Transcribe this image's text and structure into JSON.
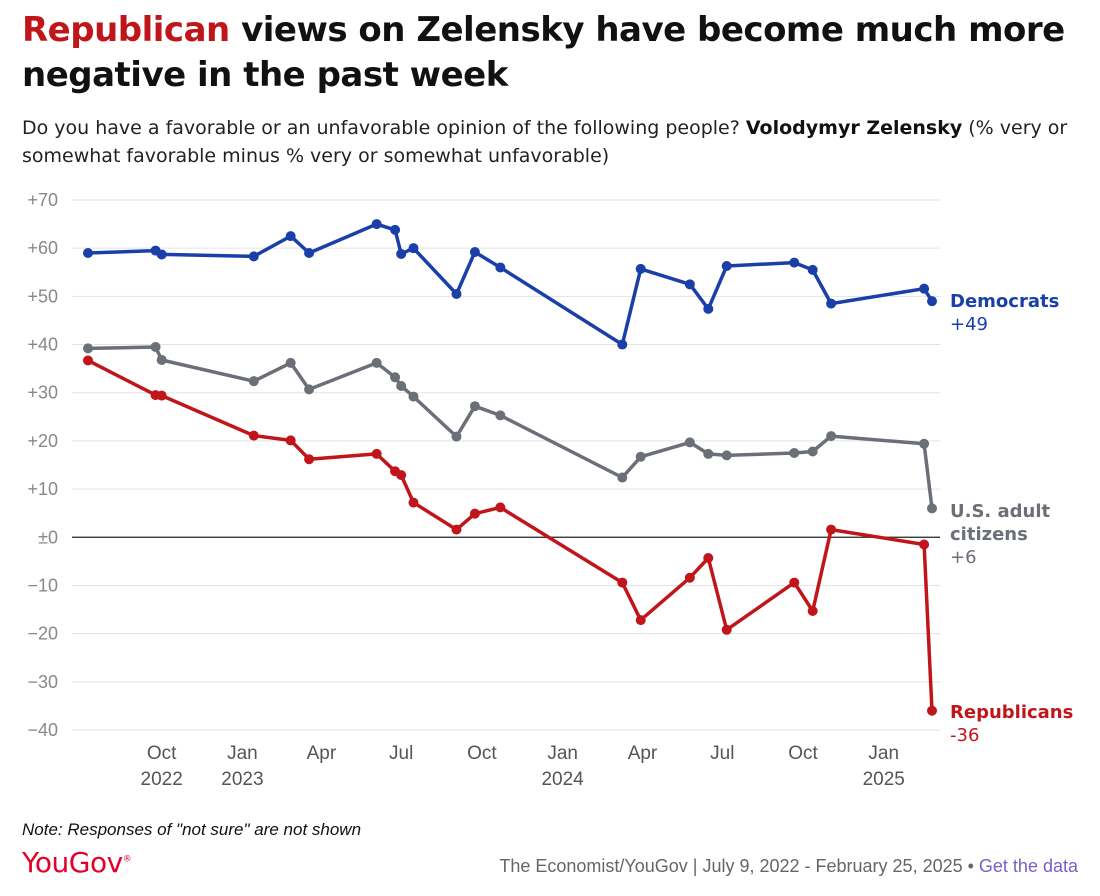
{
  "header": {
    "title_highlight": "Republican",
    "title_rest": " views on Zelensky have become much more negative in the past week",
    "subtitle_pre": "Do you have a favorable or an unfavorable opinion of the following people? ",
    "subtitle_bold": "Volodymyr Zelensky",
    "subtitle_post": " (% very or somewhat favorable minus % very or somewhat unfavorable)"
  },
  "footer": {
    "note": "Note: Responses of \"not sure\" are not shown",
    "logo": "YouGov",
    "source": "The Economist/YouGov | July 9, 2022 - February 25, 2025 • ",
    "link": "Get the data"
  },
  "colors": {
    "democrats": "#1a3fa8",
    "citizens": "#6b6f78",
    "republicans": "#c0161b",
    "zero_line": "#222222",
    "grid": "#e3e3e3"
  },
  "chart_data": {
    "type": "line",
    "ylim": [
      -40,
      70
    ],
    "y_ticks": [
      70,
      60,
      50,
      40,
      30,
      20,
      10,
      0,
      -10,
      -20,
      -30,
      -40
    ],
    "y_tick_labels": [
      "+70",
      "+60",
      "+50",
      "+40",
      "+30",
      "+20",
      "+10",
      "±0",
      "−10",
      "−20",
      "−30",
      "−40"
    ],
    "x_range": [
      "2022-07-09",
      "2025-02-25"
    ],
    "x_ticks": [
      {
        "date": "2022-10-01",
        "label": "Oct",
        "year": "2022"
      },
      {
        "date": "2023-01-01",
        "label": "Jan",
        "year": "2023"
      },
      {
        "date": "2023-04-01",
        "label": "Apr",
        "year": ""
      },
      {
        "date": "2023-07-01",
        "label": "Jul",
        "year": ""
      },
      {
        "date": "2023-10-01",
        "label": "Oct",
        "year": ""
      },
      {
        "date": "2024-01-01",
        "label": "Jan",
        "year": "2024"
      },
      {
        "date": "2024-04-01",
        "label": "Apr",
        "year": ""
      },
      {
        "date": "2024-07-01",
        "label": "Jul",
        "year": ""
      },
      {
        "date": "2024-10-01",
        "label": "Oct",
        "year": ""
      },
      {
        "date": "2025-01-01",
        "label": "Jan",
        "year": "2025"
      }
    ],
    "x": [
      "2022-07-09",
      "2022-09-24",
      "2022-10-01",
      "2023-01-14",
      "2023-02-25",
      "2023-03-18",
      "2023-06-03",
      "2023-06-24",
      "2023-07-01",
      "2023-07-15",
      "2023-09-02",
      "2023-09-23",
      "2023-10-22",
      "2024-03-09",
      "2024-03-30",
      "2024-05-25",
      "2024-06-15",
      "2024-07-06",
      "2024-09-21",
      "2024-10-12",
      "2024-11-02",
      "2025-02-16",
      "2025-02-25"
    ],
    "series": [
      {
        "name": "Democrats",
        "end_label": "+49",
        "color": "#1a3fa8",
        "values": [
          59,
          59.5,
          58.7,
          58.3,
          62.5,
          59,
          65,
          63.8,
          58.8,
          60,
          50.5,
          59.2,
          56,
          40,
          55.7,
          52.5,
          47.4,
          56.3,
          57,
          55.5,
          48.5,
          51.6,
          49
        ]
      },
      {
        "name": "U.S. adult citizens",
        "end_label": "+6",
        "color": "#6b6f78",
        "values": [
          39.2,
          39.5,
          36.8,
          32.4,
          36.2,
          30.7,
          36.2,
          33.2,
          31.4,
          29.2,
          20.9,
          27.2,
          25.3,
          12.4,
          16.7,
          19.7,
          17.3,
          17,
          17.5,
          17.8,
          21,
          19.4,
          6
        ]
      },
      {
        "name": "Republicans",
        "end_label": "-36",
        "color": "#c0161b",
        "values": [
          36.7,
          29.5,
          29.4,
          21.1,
          20.1,
          16.2,
          17.3,
          13.7,
          12.9,
          7.2,
          1.6,
          4.9,
          6.2,
          -9.4,
          -17.2,
          -8.4,
          -4.3,
          -19.2,
          -9.4,
          -15.3,
          1.6,
          -1.5,
          -36
        ]
      }
    ]
  }
}
